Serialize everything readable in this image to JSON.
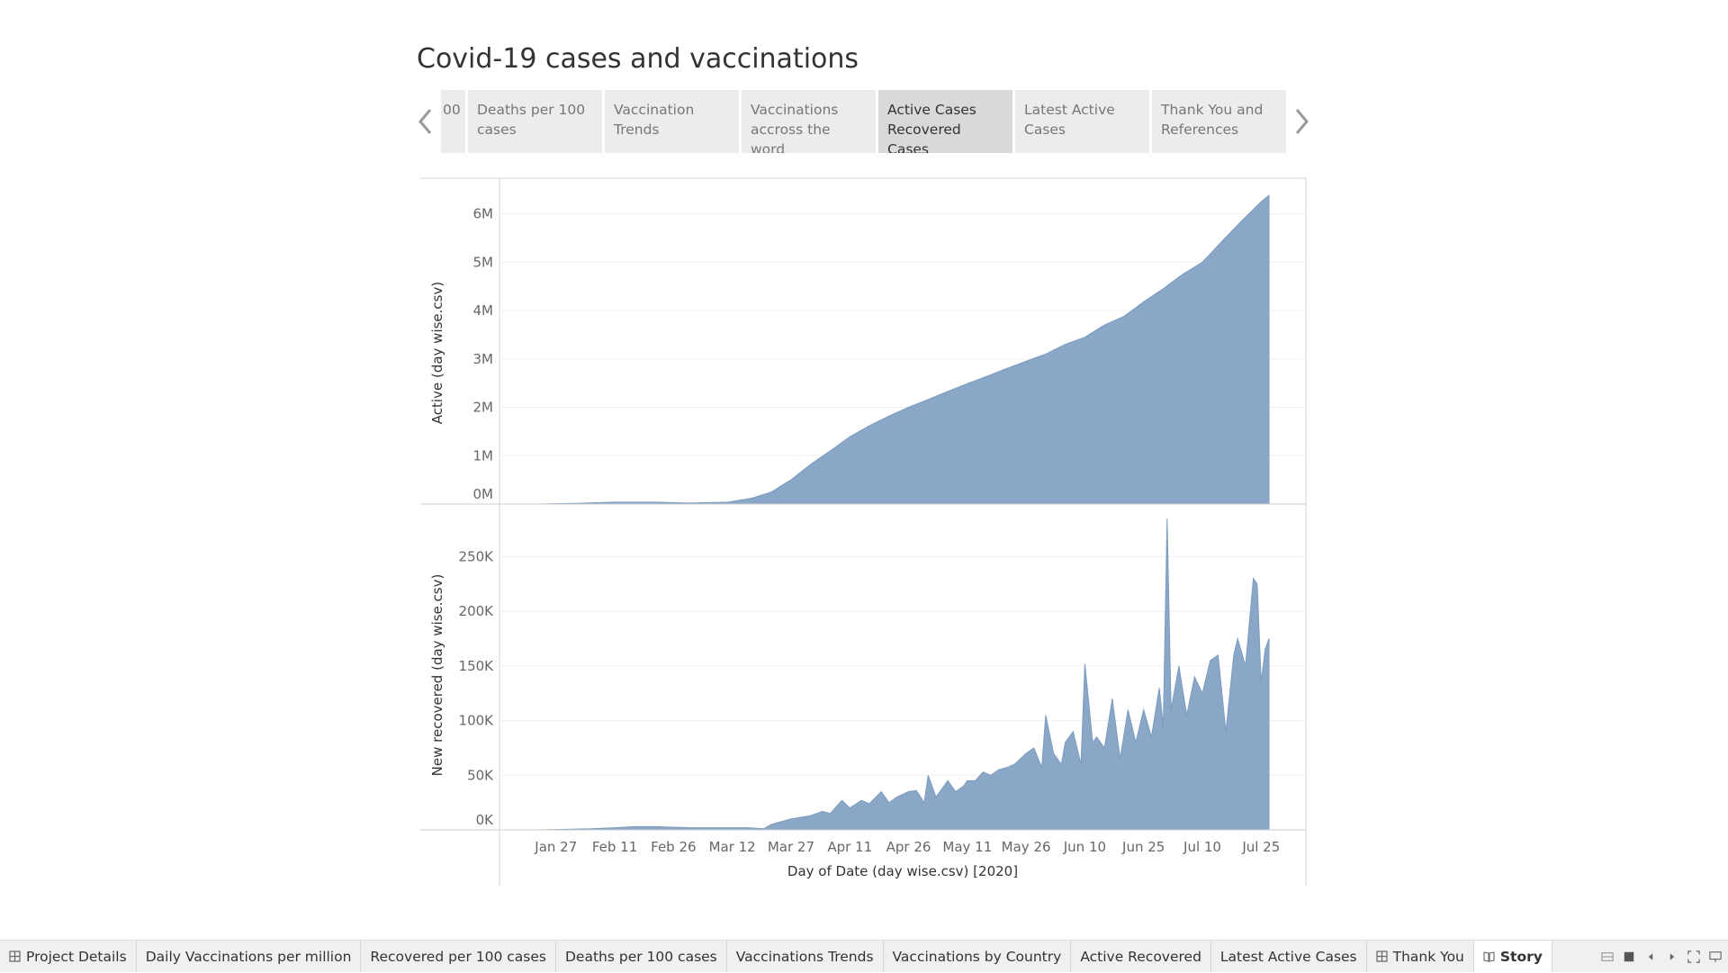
{
  "story": {
    "title": "Covid-19 cases and vaccinations",
    "points": [
      {
        "label": "00"
      },
      {
        "label": "Deaths per 100 cases"
      },
      {
        "label": "Vaccination Trends"
      },
      {
        "label": "Vaccinations accross the word"
      },
      {
        "label": "Active Cases Recovered Cases"
      },
      {
        "label": "Latest Active Cases"
      },
      {
        "label": "Thank You and References"
      }
    ],
    "active_index": 4
  },
  "chart_data": [
    {
      "type": "area",
      "ylabel": "Active (day wise.csv)",
      "yticks": [
        "0M",
        "1M",
        "2M",
        "3M",
        "4M",
        "5M",
        "6M"
      ],
      "ylim": [
        0,
        6400000
      ],
      "color": "#8aa7c7",
      "x": [
        "2020-01-22",
        "2020-02-01",
        "2020-02-11",
        "2020-02-21",
        "2020-03-01",
        "2020-03-11",
        "2020-03-17",
        "2020-03-22",
        "2020-03-27",
        "2020-04-01",
        "2020-04-06",
        "2020-04-11",
        "2020-04-16",
        "2020-04-21",
        "2020-04-26",
        "2020-05-01",
        "2020-05-06",
        "2020-05-11",
        "2020-05-16",
        "2020-05-21",
        "2020-05-26",
        "2020-05-31",
        "2020-06-05",
        "2020-06-10",
        "2020-06-15",
        "2020-06-20",
        "2020-06-25",
        "2020-06-30",
        "2020-07-05",
        "2020-07-10",
        "2020-07-15",
        "2020-07-20",
        "2020-07-25",
        "2020-07-27"
      ],
      "values": [
        500,
        15000,
        40000,
        40000,
        20000,
        40000,
        120000,
        250000,
        500000,
        820000,
        1100000,
        1390000,
        1620000,
        1820000,
        2000000,
        2160000,
        2330000,
        2490000,
        2640000,
        2800000,
        2950000,
        3100000,
        3300000,
        3450000,
        3700000,
        3880000,
        4180000,
        4450000,
        4750000,
        5000000,
        5430000,
        5850000,
        6250000,
        6380000
      ]
    },
    {
      "type": "area",
      "ylabel": "New recovered (day wise.csv)",
      "xlabel": "Day of Date (day wise.csv) [2020]",
      "yticks": [
        "0K",
        "50K",
        "100K",
        "150K",
        "200K",
        "250K"
      ],
      "ylim": [
        0,
        290000
      ],
      "color": "#8aa7c7",
      "x": [
        "2020-01-22",
        "2020-02-05",
        "2020-02-11",
        "2020-02-16",
        "2020-02-21",
        "2020-03-01",
        "2020-03-08",
        "2020-03-16",
        "2020-03-20",
        "2020-03-22",
        "2020-03-27",
        "2020-04-01",
        "2020-04-04",
        "2020-04-06",
        "2020-04-09",
        "2020-04-11",
        "2020-04-14",
        "2020-04-16",
        "2020-04-19",
        "2020-04-21",
        "2020-04-23",
        "2020-04-26",
        "2020-04-28",
        "2020-04-30",
        "2020-05-01",
        "2020-05-03",
        "2020-05-06",
        "2020-05-08",
        "2020-05-10",
        "2020-05-11",
        "2020-05-13",
        "2020-05-15",
        "2020-05-17",
        "2020-05-19",
        "2020-05-21",
        "2020-05-23",
        "2020-05-26",
        "2020-05-28",
        "2020-05-30",
        "2020-05-31",
        "2020-06-02",
        "2020-06-04",
        "2020-06-05",
        "2020-06-07",
        "2020-06-09",
        "2020-06-10",
        "2020-06-12",
        "2020-06-13",
        "2020-06-15",
        "2020-06-17",
        "2020-06-19",
        "2020-06-21",
        "2020-06-23",
        "2020-06-25",
        "2020-06-27",
        "2020-06-29",
        "2020-06-30",
        "2020-07-01",
        "2020-07-02",
        "2020-07-04",
        "2020-07-06",
        "2020-07-08",
        "2020-07-10",
        "2020-07-12",
        "2020-07-14",
        "2020-07-16",
        "2020-07-18",
        "2020-07-19",
        "2020-07-21",
        "2020-07-23",
        "2020-07-24",
        "2020-07-25",
        "2020-07-26",
        "2020-07-27"
      ],
      "values": [
        0,
        1000,
        2000,
        3000,
        3000,
        2000,
        2000,
        2000,
        1000,
        5000,
        10000,
        13000,
        17000,
        15000,
        27000,
        20000,
        27000,
        24000,
        35000,
        25000,
        30000,
        35000,
        36000,
        25000,
        50000,
        30000,
        45000,
        35000,
        40000,
        45000,
        45000,
        53000,
        50000,
        55000,
        57000,
        60000,
        70000,
        75000,
        57000,
        105000,
        70000,
        60000,
        80000,
        90000,
        60000,
        152000,
        80000,
        85000,
        75000,
        120000,
        65000,
        110000,
        80000,
        110000,
        85000,
        130000,
        95000,
        285000,
        110000,
        150000,
        105000,
        140000,
        125000,
        155000,
        160000,
        90000,
        160000,
        175000,
        150000,
        230000,
        225000,
        135000,
        165000,
        175000
      ]
    }
  ],
  "shared_x_axis": {
    "ticks": [
      "Jan 27",
      "Feb 11",
      "Feb 26",
      "Mar 12",
      "Mar 27",
      "Apr 11",
      "Apr 26",
      "May 11",
      "May 26",
      "Jun 10",
      "Jun 25",
      "Jul 10",
      "Jul 25"
    ],
    "tick_dates": [
      "2020-01-27",
      "2020-02-11",
      "2020-02-26",
      "2020-03-12",
      "2020-03-27",
      "2020-04-11",
      "2020-04-26",
      "2020-05-11",
      "2020-05-26",
      "2020-06-10",
      "2020-06-25",
      "2020-07-10",
      "2020-07-25"
    ]
  },
  "sheet_tabs": [
    {
      "label": "Project Details",
      "icon": "dashboard-icon"
    },
    {
      "label": "Daily Vaccinations per million"
    },
    {
      "label": "Recovered per 100 cases"
    },
    {
      "label": "Deaths per 100 cases"
    },
    {
      "label": "Vaccinations Trends"
    },
    {
      "label": "Vaccinations by Country"
    },
    {
      "label": "Active Recovered"
    },
    {
      "label": "Latest Active Cases"
    },
    {
      "label": "Thank You",
      "icon": "dashboard-icon"
    },
    {
      "label": "Story",
      "icon": "story-icon",
      "active": true
    }
  ],
  "bottom_controls": [
    "grid-view-icon",
    "filmstrip-icon",
    "previous-sheet-icon",
    "next-sheet-icon",
    "fullscreen-icon",
    "presentation-icon"
  ]
}
